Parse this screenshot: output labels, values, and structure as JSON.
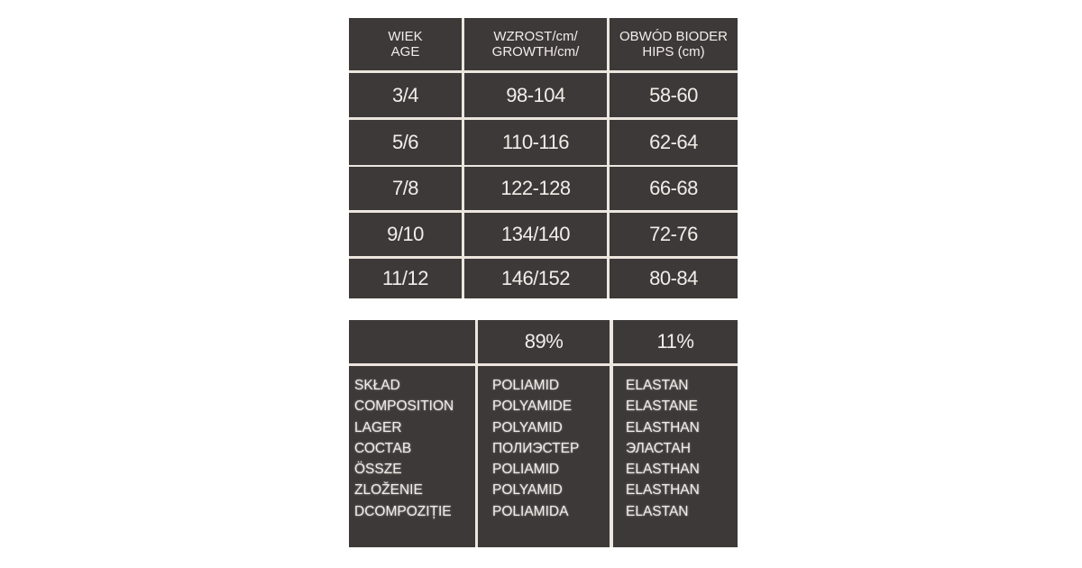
{
  "size_table": {
    "headers": [
      [
        "WIEK",
        "AGE"
      ],
      [
        "WZROST/cm/",
        "GROWTH/cm/"
      ],
      [
        "OBWÓD BIODER",
        "HIPS (cm)"
      ]
    ],
    "rows": [
      [
        "3/4",
        "98-104",
        "58-60"
      ],
      [
        "5/6",
        "110-116",
        "62-64"
      ],
      [
        "7/8",
        "122-128",
        "66-68"
      ],
      [
        "9/10",
        "134/140",
        "72-76"
      ],
      [
        "11/12",
        "146/152",
        "80-84"
      ]
    ]
  },
  "composition_table": {
    "percentages": [
      "",
      "89%",
      "11%"
    ],
    "labels": [
      "SKŁAD",
      "COMPOSITION",
      "LAGER",
      "СОСТАВ",
      "ÖSSZE",
      "ZLOŽENIE",
      "DCOMPOZIȚIE"
    ],
    "material_1": [
      "POLIAMID",
      "POLYAMIDE",
      "POLYAMID",
      "ПОЛИЭСТЕР",
      "POLIAMID",
      "POLYAMID",
      "POLIAMIDA"
    ],
    "material_2": [
      "ELASTAN",
      "ELASTANE",
      "ELASTHAN",
      "ЭЛАСТАН",
      "ELASTHAN",
      "ELASTHAN",
      "ELASTAN"
    ]
  },
  "colors": {
    "cell_background": "#3e3939",
    "text": "#f2ede8",
    "rule": "#ece6df"
  }
}
